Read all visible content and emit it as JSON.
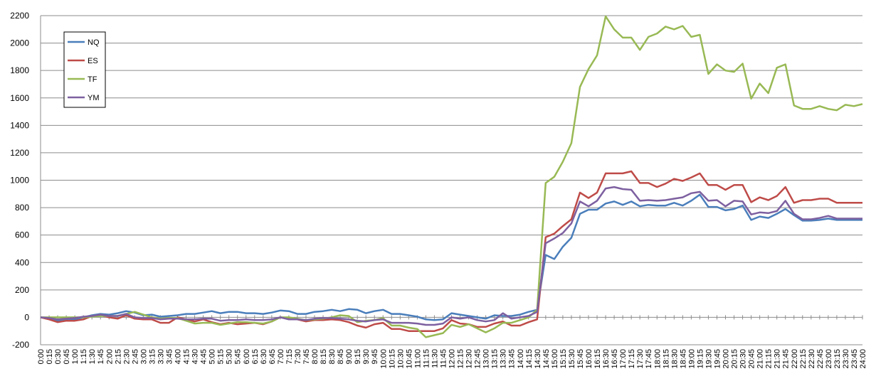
{
  "chart_data": {
    "type": "line",
    "title": "",
    "xlabel": "",
    "ylabel": "",
    "ylim": [
      -200,
      2200
    ],
    "ytick_step": 200,
    "grid": "horizontal",
    "legend_position": "top-left",
    "x": [
      "0:00",
      "0:15",
      "0:30",
      "0:45",
      "1:00",
      "1:15",
      "1:30",
      "1:45",
      "2:00",
      "2:15",
      "2:30",
      "2:45",
      "3:00",
      "3:15",
      "3:30",
      "3:45",
      "4:00",
      "4:15",
      "4:30",
      "4:45",
      "5:00",
      "5:15",
      "5:30",
      "5:45",
      "6:00",
      "6:15",
      "6:30",
      "6:45",
      "7:00",
      "7:15",
      "7:30",
      "7:45",
      "8:00",
      "8:15",
      "8:30",
      "8:45",
      "9:00",
      "9:15",
      "9:30",
      "9:45",
      "10:00",
      "10:15",
      "10:30",
      "10:45",
      "11:00",
      "11:15",
      "11:30",
      "11:45",
      "12:00",
      "12:15",
      "12:30",
      "12:45",
      "13:00",
      "13:15",
      "13:30",
      "13:45",
      "14:00",
      "14:15",
      "14:30",
      "14:45",
      "15:00",
      "15:15",
      "15:30",
      "15:45",
      "16:00",
      "16:15",
      "16:30",
      "16:45",
      "17:00",
      "17:15",
      "17:30",
      "17:45",
      "18:00",
      "18:15",
      "18:30",
      "18:45",
      "19:00",
      "19:15",
      "19:30",
      "19:45",
      "20:00",
      "20:15",
      "20:30",
      "20:45",
      "21:00",
      "21:15",
      "21:30",
      "21:45",
      "22:00",
      "22:15",
      "22:30",
      "22:45",
      "23:00",
      "23:15",
      "23:30",
      "23:45",
      "24:00"
    ],
    "series": [
      {
        "name": "NQ",
        "color": "#4a7ebb",
        "values": [
          0,
          -10,
          -25,
          -20,
          -15,
          0,
          15,
          25,
          20,
          30,
          45,
          35,
          15,
          20,
          5,
          10,
          15,
          25,
          25,
          35,
          45,
          30,
          40,
          40,
          30,
          30,
          25,
          35,
          50,
          45,
          25,
          25,
          40,
          45,
          55,
          45,
          60,
          55,
          30,
          45,
          55,
          25,
          25,
          15,
          5,
          -15,
          -20,
          -15,
          30,
          20,
          10,
          0,
          -10,
          15,
          10,
          10,
          20,
          40,
          55,
          455,
          425,
          515,
          580,
          755,
          785,
          785,
          830,
          845,
          820,
          845,
          810,
          820,
          815,
          815,
          835,
          815,
          850,
          895,
          805,
          805,
          780,
          790,
          815,
          710,
          735,
          725,
          755,
          790,
          745,
          705,
          705,
          710,
          720,
          710,
          710,
          710,
          710
        ]
      },
      {
        "name": "ES",
        "color": "#be4b48",
        "values": [
          0,
          -15,
          -35,
          -25,
          -25,
          -15,
          10,
          15,
          0,
          -10,
          15,
          -10,
          -15,
          -15,
          -40,
          -40,
          0,
          -15,
          -30,
          -15,
          -35,
          -50,
          -40,
          -50,
          -45,
          -40,
          -50,
          -30,
          0,
          -10,
          -15,
          -30,
          -20,
          -20,
          -15,
          -20,
          -35,
          -60,
          -75,
          -50,
          -40,
          -85,
          -85,
          -100,
          -100,
          -100,
          -100,
          -80,
          -20,
          -45,
          -50,
          -70,
          -70,
          -45,
          -30,
          -60,
          -60,
          -35,
          -15,
          585,
          610,
          665,
          715,
          910,
          870,
          910,
          1050,
          1050,
          1050,
          1065,
          980,
          980,
          950,
          975,
          1010,
          995,
          1020,
          1050,
          965,
          965,
          930,
          965,
          965,
          840,
          875,
          855,
          885,
          950,
          835,
          855,
          855,
          865,
          865,
          835,
          835,
          835,
          835
        ]
      },
      {
        "name": "TF",
        "color": "#98b954",
        "values": [
          0,
          0,
          0,
          0,
          0,
          0,
          5,
          10,
          10,
          10,
          25,
          40,
          20,
          0,
          -10,
          -5,
          -5,
          -25,
          -45,
          -40,
          -40,
          -55,
          -45,
          -35,
          -35,
          -40,
          -45,
          -30,
          0,
          0,
          -10,
          -20,
          -15,
          -10,
          0,
          15,
          10,
          -35,
          -25,
          -20,
          -5,
          -60,
          -60,
          -75,
          -85,
          -145,
          -130,
          -115,
          -55,
          -70,
          -50,
          -80,
          -110,
          -80,
          -40,
          -40,
          -20,
          0,
          55,
          980,
          1025,
          1135,
          1270,
          1680,
          1810,
          1910,
          2195,
          2100,
          2040,
          2040,
          1950,
          2045,
          2070,
          2120,
          2100,
          2125,
          2045,
          2060,
          1775,
          1845,
          1800,
          1790,
          1850,
          1595,
          1705,
          1635,
          1820,
          1845,
          1545,
          1520,
          1520,
          1540,
          1520,
          1510,
          1550,
          1540,
          1555
        ]
      },
      {
        "name": "YM",
        "color": "#7d60a0",
        "values": [
          0,
          -5,
          -15,
          -10,
          -5,
          5,
          10,
          20,
          10,
          10,
          25,
          0,
          -5,
          -5,
          -15,
          -10,
          -10,
          -15,
          -15,
          -10,
          -10,
          -25,
          -20,
          -20,
          -15,
          -20,
          -20,
          -15,
          0,
          -15,
          -15,
          -20,
          -10,
          -5,
          -5,
          -10,
          -15,
          -25,
          -30,
          -20,
          -15,
          -40,
          -40,
          -40,
          -45,
          -55,
          -55,
          -45,
          0,
          -10,
          0,
          -20,
          -30,
          -20,
          30,
          -10,
          0,
          10,
          40,
          540,
          575,
          615,
          685,
          845,
          810,
          850,
          940,
          950,
          935,
          930,
          850,
          855,
          850,
          855,
          865,
          875,
          905,
          915,
          850,
          855,
          810,
          850,
          845,
          750,
          765,
          760,
          775,
          850,
          755,
          715,
          715,
          725,
          740,
          720,
          720,
          720,
          720
        ]
      }
    ]
  }
}
